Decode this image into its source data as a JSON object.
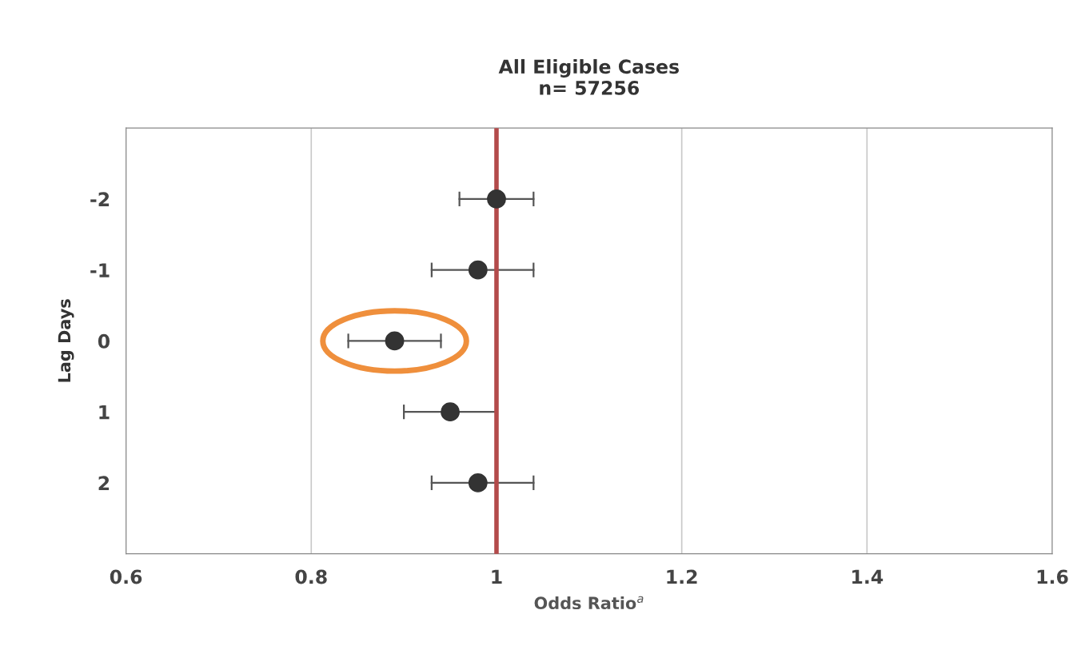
{
  "chart_data": {
    "type": "scatter",
    "orientation": "horizontal",
    "title": "All Eligible Cases\nn= 57256",
    "xlabel": "Odds Ratio$^{a}$",
    "ylabel": "Lag Days",
    "categories": [
      "-2",
      "-1",
      "0",
      "1",
      "2"
    ],
    "series": [
      {
        "color": "#333333",
        "values": [
          1.0,
          0.98,
          0.89,
          0.95,
          0.98
        ],
        "errors": [
          [
            0.96,
            1.04
          ],
          [
            0.93,
            1.04
          ],
          [
            0.84,
            0.94
          ],
          [
            0.9,
            1.0
          ],
          [
            0.93,
            1.04
          ]
        ]
      }
    ],
    "xlim": [
      0.6,
      1.6
    ],
    "xticks": [
      0.6,
      0.8,
      1,
      1.2,
      1.4,
      1.6
    ],
    "ref_lines": [
      {
        "axis": "x",
        "value": 1,
        "label": null,
        "color": "#b34a4a"
      }
    ],
    "grid": "x",
    "marker": "circle"
  }
}
